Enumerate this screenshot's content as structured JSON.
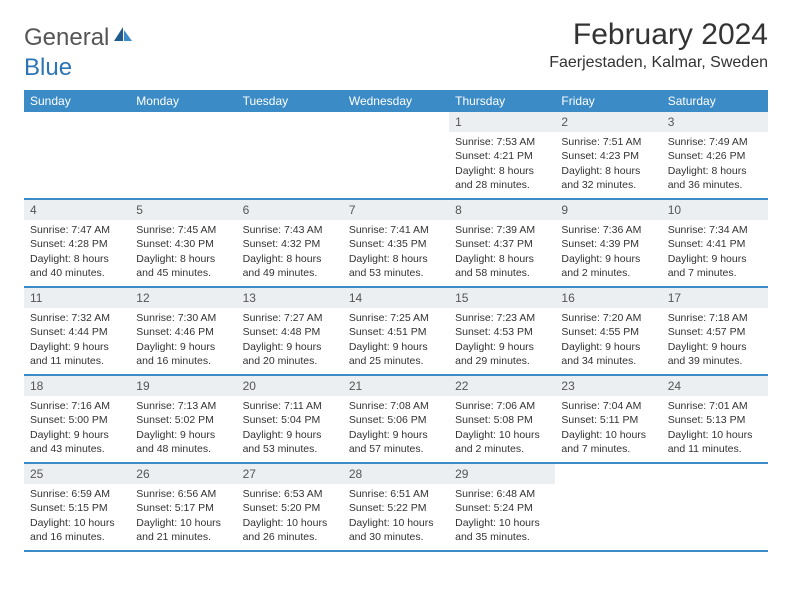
{
  "header": {
    "logo_text_1": "General",
    "logo_text_2": "Blue",
    "month_title": "February 2024",
    "location": "Faerjestaden, Kalmar, Sweden"
  },
  "colors": {
    "header_bg": "#3b8bc7",
    "header_text": "#ffffff",
    "daynum_bg": "#eceff1",
    "border": "#3b8bc7",
    "logo_blue": "#2e75b6"
  },
  "day_labels": [
    "Sunday",
    "Monday",
    "Tuesday",
    "Wednesday",
    "Thursday",
    "Friday",
    "Saturday"
  ],
  "weeks": [
    [
      null,
      null,
      null,
      null,
      {
        "n": "1",
        "sunrise": "Sunrise: 7:53 AM",
        "sunset": "Sunset: 4:21 PM",
        "daylight": "Daylight: 8 hours and 28 minutes."
      },
      {
        "n": "2",
        "sunrise": "Sunrise: 7:51 AM",
        "sunset": "Sunset: 4:23 PM",
        "daylight": "Daylight: 8 hours and 32 minutes."
      },
      {
        "n": "3",
        "sunrise": "Sunrise: 7:49 AM",
        "sunset": "Sunset: 4:26 PM",
        "daylight": "Daylight: 8 hours and 36 minutes."
      }
    ],
    [
      {
        "n": "4",
        "sunrise": "Sunrise: 7:47 AM",
        "sunset": "Sunset: 4:28 PM",
        "daylight": "Daylight: 8 hours and 40 minutes."
      },
      {
        "n": "5",
        "sunrise": "Sunrise: 7:45 AM",
        "sunset": "Sunset: 4:30 PM",
        "daylight": "Daylight: 8 hours and 45 minutes."
      },
      {
        "n": "6",
        "sunrise": "Sunrise: 7:43 AM",
        "sunset": "Sunset: 4:32 PM",
        "daylight": "Daylight: 8 hours and 49 minutes."
      },
      {
        "n": "7",
        "sunrise": "Sunrise: 7:41 AM",
        "sunset": "Sunset: 4:35 PM",
        "daylight": "Daylight: 8 hours and 53 minutes."
      },
      {
        "n": "8",
        "sunrise": "Sunrise: 7:39 AM",
        "sunset": "Sunset: 4:37 PM",
        "daylight": "Daylight: 8 hours and 58 minutes."
      },
      {
        "n": "9",
        "sunrise": "Sunrise: 7:36 AM",
        "sunset": "Sunset: 4:39 PM",
        "daylight": "Daylight: 9 hours and 2 minutes."
      },
      {
        "n": "10",
        "sunrise": "Sunrise: 7:34 AM",
        "sunset": "Sunset: 4:41 PM",
        "daylight": "Daylight: 9 hours and 7 minutes."
      }
    ],
    [
      {
        "n": "11",
        "sunrise": "Sunrise: 7:32 AM",
        "sunset": "Sunset: 4:44 PM",
        "daylight": "Daylight: 9 hours and 11 minutes."
      },
      {
        "n": "12",
        "sunrise": "Sunrise: 7:30 AM",
        "sunset": "Sunset: 4:46 PM",
        "daylight": "Daylight: 9 hours and 16 minutes."
      },
      {
        "n": "13",
        "sunrise": "Sunrise: 7:27 AM",
        "sunset": "Sunset: 4:48 PM",
        "daylight": "Daylight: 9 hours and 20 minutes."
      },
      {
        "n": "14",
        "sunrise": "Sunrise: 7:25 AM",
        "sunset": "Sunset: 4:51 PM",
        "daylight": "Daylight: 9 hours and 25 minutes."
      },
      {
        "n": "15",
        "sunrise": "Sunrise: 7:23 AM",
        "sunset": "Sunset: 4:53 PM",
        "daylight": "Daylight: 9 hours and 29 minutes."
      },
      {
        "n": "16",
        "sunrise": "Sunrise: 7:20 AM",
        "sunset": "Sunset: 4:55 PM",
        "daylight": "Daylight: 9 hours and 34 minutes."
      },
      {
        "n": "17",
        "sunrise": "Sunrise: 7:18 AM",
        "sunset": "Sunset: 4:57 PM",
        "daylight": "Daylight: 9 hours and 39 minutes."
      }
    ],
    [
      {
        "n": "18",
        "sunrise": "Sunrise: 7:16 AM",
        "sunset": "Sunset: 5:00 PM",
        "daylight": "Daylight: 9 hours and 43 minutes."
      },
      {
        "n": "19",
        "sunrise": "Sunrise: 7:13 AM",
        "sunset": "Sunset: 5:02 PM",
        "daylight": "Daylight: 9 hours and 48 minutes."
      },
      {
        "n": "20",
        "sunrise": "Sunrise: 7:11 AM",
        "sunset": "Sunset: 5:04 PM",
        "daylight": "Daylight: 9 hours and 53 minutes."
      },
      {
        "n": "21",
        "sunrise": "Sunrise: 7:08 AM",
        "sunset": "Sunset: 5:06 PM",
        "daylight": "Daylight: 9 hours and 57 minutes."
      },
      {
        "n": "22",
        "sunrise": "Sunrise: 7:06 AM",
        "sunset": "Sunset: 5:08 PM",
        "daylight": "Daylight: 10 hours and 2 minutes."
      },
      {
        "n": "23",
        "sunrise": "Sunrise: 7:04 AM",
        "sunset": "Sunset: 5:11 PM",
        "daylight": "Daylight: 10 hours and 7 minutes."
      },
      {
        "n": "24",
        "sunrise": "Sunrise: 7:01 AM",
        "sunset": "Sunset: 5:13 PM",
        "daylight": "Daylight: 10 hours and 11 minutes."
      }
    ],
    [
      {
        "n": "25",
        "sunrise": "Sunrise: 6:59 AM",
        "sunset": "Sunset: 5:15 PM",
        "daylight": "Daylight: 10 hours and 16 minutes."
      },
      {
        "n": "26",
        "sunrise": "Sunrise: 6:56 AM",
        "sunset": "Sunset: 5:17 PM",
        "daylight": "Daylight: 10 hours and 21 minutes."
      },
      {
        "n": "27",
        "sunrise": "Sunrise: 6:53 AM",
        "sunset": "Sunset: 5:20 PM",
        "daylight": "Daylight: 10 hours and 26 minutes."
      },
      {
        "n": "28",
        "sunrise": "Sunrise: 6:51 AM",
        "sunset": "Sunset: 5:22 PM",
        "daylight": "Daylight: 10 hours and 30 minutes."
      },
      {
        "n": "29",
        "sunrise": "Sunrise: 6:48 AM",
        "sunset": "Sunset: 5:24 PM",
        "daylight": "Daylight: 10 hours and 35 minutes."
      },
      null,
      null
    ]
  ]
}
